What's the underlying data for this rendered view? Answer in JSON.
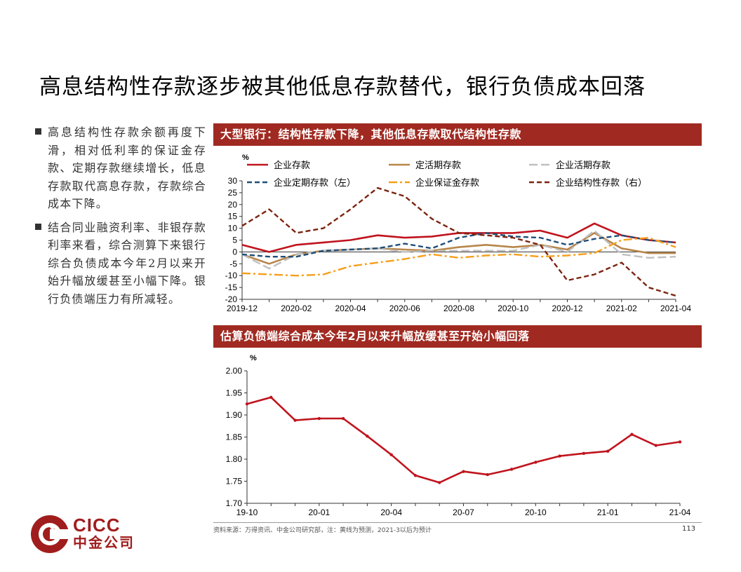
{
  "title": "高息结构性存款逐步被其他低息存款替代，银行负债成本回落",
  "bullets": [
    "高息结构性存款余额再度下滑，相对低利率的保证金存款、定期存款继续增长，低息存款取代高息存款，存款综合成本下降。",
    "结合同业融资利率、非银存款利率来看，综合测算下来银行综合负债成本今年2月以来开始升幅放缓甚至小幅下降。银行负债端压力有所减轻。"
  ],
  "panel1_title": "大型银行：结构性存款下降，其他低息存款取代结构性存款",
  "panel2_title": "估算负债端综合成本今年2月以来升幅放缓甚至开始小幅回落",
  "logo": {
    "en": "CICC",
    "cn": "中金公司"
  },
  "source": "资料来源：万得资讯、中金公司研究部，注：黄线为预测，2021-3以后为预计",
  "page_number": "113",
  "colors": {
    "accent": "#a02a21",
    "red": "#c0141e",
    "tan": "#b8864a",
    "gray": "#bfbfbf",
    "navy": "#1f4e79",
    "orange": "#f59f1a",
    "brown": "#7b2410"
  },
  "chart_data": [
    {
      "type": "line",
      "unit": "%",
      "x": [
        "2019-12",
        "2020-01",
        "2020-02",
        "2020-03",
        "2020-04",
        "2020-05",
        "2020-06",
        "2020-07",
        "2020-08",
        "2020-09",
        "2020-10",
        "2020-11",
        "2020-12",
        "2021-01",
        "2021-02",
        "2021-03",
        "2021-04"
      ],
      "xticks": [
        "2019-12",
        "2020-02",
        "2020-04",
        "2020-06",
        "2020-08",
        "2020-10",
        "2020-12",
        "2021-02",
        "2021-04"
      ],
      "ylim": [
        -20,
        30
      ],
      "yticks": [
        -20,
        -15,
        -10,
        -5,
        0,
        5,
        10,
        15,
        20,
        25,
        30
      ],
      "legend_position": "top",
      "series": [
        {
          "name": "企业存款",
          "style": "solid",
          "color": "#c0141e",
          "values": [
            3,
            0,
            3,
            4,
            5,
            7,
            6,
            6.5,
            8,
            8,
            8,
            9,
            6,
            12,
            7,
            5,
            4
          ]
        },
        {
          "name": "定活期存款",
          "style": "solid",
          "color": "#b8864a",
          "values": [
            -1,
            -5,
            -1,
            0.5,
            1,
            1.5,
            1,
            0.5,
            2,
            3,
            2,
            3,
            1,
            8,
            1.5,
            -0.5,
            -0.5
          ]
        },
        {
          "name": "企业活期存款",
          "style": "longdash",
          "color": "#bfbfbf",
          "values": [
            -1,
            -7,
            -1,
            0.5,
            1,
            1.5,
            0,
            0.5,
            0.5,
            0.5,
            0.5,
            3,
            0,
            9,
            -1,
            -2.5,
            -2
          ]
        },
        {
          "name": "企业定期存款（左）",
          "style": "dash",
          "color": "#1f4e79",
          "values": [
            -1,
            -2,
            -2,
            0.5,
            1,
            1.5,
            3.5,
            1.5,
            6,
            8,
            6.5,
            6,
            3,
            5.5,
            7,
            5,
            4
          ]
        },
        {
          "name": "企业保证金存款",
          "style": "dashdot",
          "color": "#f59f1a",
          "values": [
            -9,
            -9.5,
            -10,
            -9.5,
            -6,
            -4.5,
            -3,
            -1,
            -2.5,
            -1.5,
            -1,
            -2,
            -1.5,
            -0.5,
            5,
            6,
            2
          ]
        },
        {
          "name": "企业结构性存款（右）",
          "style": "dash",
          "color": "#7b2410",
          "values": [
            11,
            18,
            8,
            10,
            18,
            27,
            23.5,
            14,
            8,
            7,
            6,
            3,
            -12,
            -9.5,
            -4.5,
            -15,
            -18.5
          ]
        }
      ]
    },
    {
      "type": "line",
      "unit": "%",
      "x": [
        "19-10",
        "19-11",
        "19-12",
        "20-01",
        "20-02",
        "20-03",
        "20-04",
        "20-05",
        "20-06",
        "20-07",
        "20-08",
        "20-09",
        "20-10",
        "20-11",
        "20-12",
        "21-01",
        "21-02",
        "21-03",
        "21-04"
      ],
      "xticks": [
        "19-10",
        "20-01",
        "20-04",
        "20-07",
        "20-10",
        "21-01",
        "21-04"
      ],
      "ylim": [
        1.7,
        2.0
      ],
      "yticks": [
        "1.70",
        "1.75",
        "1.80",
        "1.85",
        "1.90",
        "1.95",
        "2.00"
      ],
      "series": [
        {
          "name": "",
          "style": "solid",
          "color": "#c0141e",
          "values": [
            1.925,
            1.94,
            1.888,
            1.892,
            1.892,
            1.852,
            1.81,
            1.763,
            1.747,
            1.772,
            1.765,
            1.777,
            1.793,
            1.807,
            1.813,
            1.818,
            1.856,
            1.831,
            1.839
          ]
        }
      ]
    }
  ]
}
